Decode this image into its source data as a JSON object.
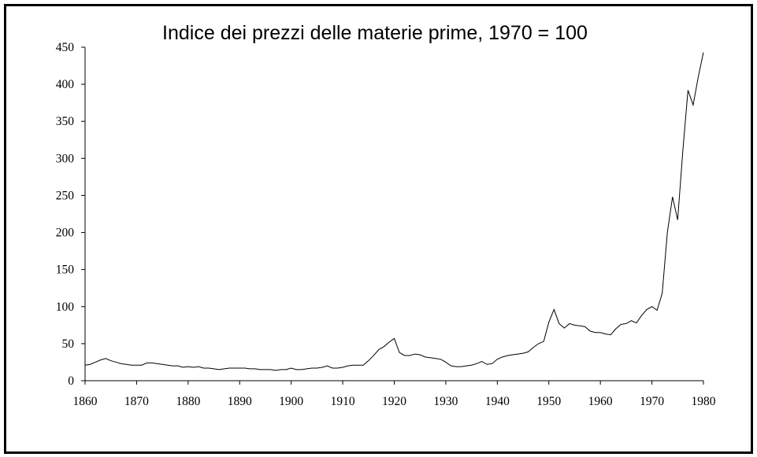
{
  "chart_data": {
    "type": "line",
    "title": "Indice dei prezzi delle materie prime, 1970 = 100",
    "xlabel": "",
    "ylabel": "",
    "xlim": [
      1860,
      1980
    ],
    "ylim": [
      0,
      450
    ],
    "grid": false,
    "x_ticks": [
      "1860",
      "1870",
      "1880",
      "1890",
      "1900",
      "1910",
      "1920",
      "1930",
      "1940",
      "1950",
      "1960",
      "1970",
      "1980"
    ],
    "y_ticks": [
      "0",
      "50",
      "100",
      "150",
      "200",
      "250",
      "300",
      "350",
      "400",
      "450"
    ],
    "series": [
      {
        "name": "Indice",
        "color": "#000000",
        "x_start": 1860,
        "values": [
          21,
          22,
          25,
          28,
          30,
          27,
          25,
          23,
          22,
          21,
          21,
          21,
          24,
          24,
          23,
          22,
          21,
          20,
          20,
          18,
          19,
          18,
          19,
          17,
          17,
          16,
          15,
          16,
          17,
          17,
          17,
          17,
          16,
          16,
          15,
          15,
          15,
          14,
          15,
          15,
          17,
          15,
          15,
          16,
          17,
          17,
          18,
          20,
          17,
          17,
          18,
          20,
          21,
          21,
          21,
          27,
          34,
          42,
          46,
          52,
          57,
          38,
          34,
          34,
          36,
          35,
          32,
          31,
          30,
          29,
          25,
          20,
          19,
          19,
          20,
          21,
          23,
          26,
          22,
          23,
          29,
          32,
          34,
          35,
          36,
          37,
          39,
          45,
          50,
          53,
          79,
          96,
          77,
          71,
          77,
          75,
          74,
          73,
          67,
          65,
          65,
          63,
          62,
          70,
          76,
          77,
          81,
          78,
          88,
          96,
          100,
          95,
          118,
          200,
          248,
          217,
          310,
          392,
          372,
          410,
          443
        ]
      }
    ]
  }
}
